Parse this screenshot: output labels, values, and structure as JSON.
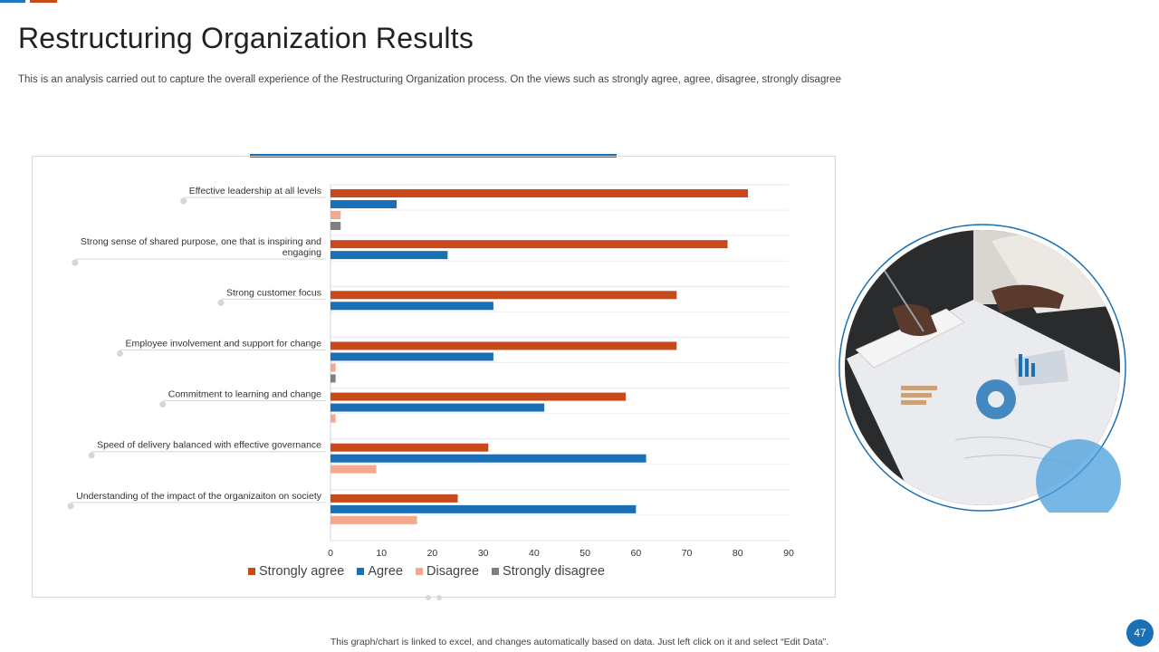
{
  "header": {
    "title": "Restructuring Organization Results",
    "subtitle": "This is an analysis carried out to capture the overall experience of the Restructuring Organization process. On the views such as strongly agree, agree, disagree, strongly disagree"
  },
  "footer": {
    "note": "This graph/chart is linked to excel, and changes automatically based on data. Just left click on it and select “Edit Data”.",
    "page_number": "47"
  },
  "colors": {
    "strongly_agree": "#c84a1a",
    "agree": "#1a6fb5",
    "disagree": "#f2a98e",
    "strongly_disagree": "#7f7f7f"
  },
  "chart_data": {
    "type": "bar",
    "orientation": "horizontal",
    "categories": [
      "Effective leadership at all levels",
      "Strong sense of shared purpose, one that is inspiring and engaging",
      "Strong customer focus",
      "Employee involvement and support for change",
      "Commitment to learning and change",
      "Speed of delivery balanced with effective governance",
      "Understanding of the impact of the organizaiton on society"
    ],
    "category_lines": [
      [
        "Effective leadership at all levels"
      ],
      [
        "Strong sense of shared purpose, one that is inspiring and",
        "engaging"
      ],
      [
        "Strong customer focus"
      ],
      [
        "Employee involvement and support for change"
      ],
      [
        "Commitment to learning and change"
      ],
      [
        "Speed of delivery balanced with effective governance"
      ],
      [
        "Understanding of the impact of the organizaiton on society"
      ]
    ],
    "series": [
      {
        "name": "Strongly agree",
        "key": "strongly_agree",
        "values": [
          82,
          78,
          68,
          68,
          58,
          31,
          25
        ]
      },
      {
        "name": "Agree",
        "key": "agree",
        "values": [
          13,
          23,
          32,
          32,
          42,
          62,
          60
        ]
      },
      {
        "name": "Disagree",
        "key": "disagree",
        "values": [
          2,
          0,
          0,
          1,
          1,
          9,
          17
        ]
      },
      {
        "name": "Strongly disagree",
        "key": "strongly_disagree",
        "values": [
          2,
          0,
          0,
          1,
          0,
          0,
          0
        ]
      }
    ],
    "xlim": [
      0,
      90
    ],
    "xticks": [
      0,
      10,
      20,
      30,
      40,
      50,
      60,
      70,
      80,
      90
    ],
    "legend_position": "bottom",
    "grid": true
  }
}
